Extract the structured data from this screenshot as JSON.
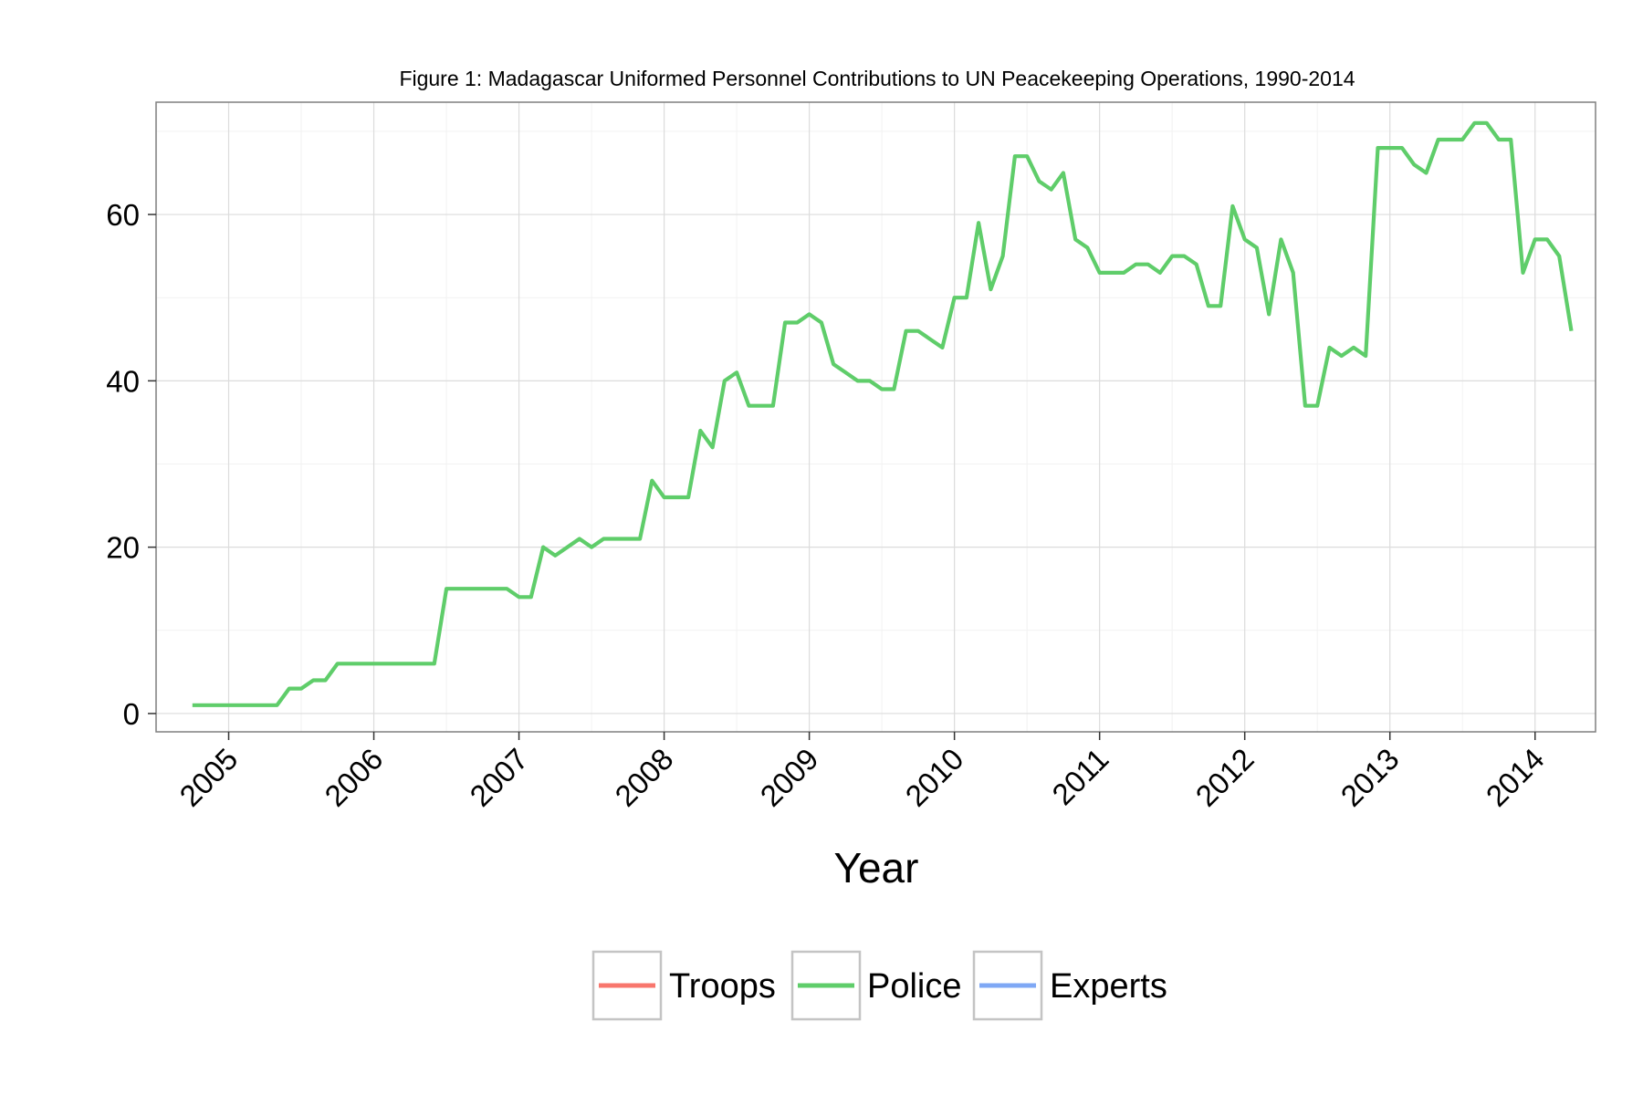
{
  "chart_data": {
    "type": "line",
    "title": "Figure 1: Madagascar Uniformed Personnel Contributions to UN Peacekeeping Operations, 1990-2014",
    "xlabel": "Year",
    "ylabel": "",
    "x_ticks": [
      "2005",
      "2006",
      "2007",
      "2008",
      "2009",
      "2010",
      "2011",
      "2012",
      "2013",
      "2014"
    ],
    "y_ticks": [
      "0",
      "20",
      "40",
      "60"
    ],
    "xlim": [
      "2004-07",
      "2014-06"
    ],
    "ylim": [
      -2.2,
      73.5
    ],
    "grid": true,
    "legend_position": "bottom",
    "legend": [
      {
        "name": "Troops",
        "color": "#F8766D"
      },
      {
        "name": "Police",
        "color": "#5FCD6A"
      },
      {
        "name": "Experts",
        "color": "#7FA8F5"
      }
    ],
    "series": [
      {
        "name": "Police",
        "color": "#5FCD6A",
        "points": [
          [
            "2004-10",
            1
          ],
          [
            "2004-11",
            1
          ],
          [
            "2004-12",
            1
          ],
          [
            "2005-01",
            1
          ],
          [
            "2005-02",
            1
          ],
          [
            "2005-03",
            1
          ],
          [
            "2005-04",
            1
          ],
          [
            "2005-05",
            1
          ],
          [
            "2005-06",
            3
          ],
          [
            "2005-07",
            3
          ],
          [
            "2005-08",
            4
          ],
          [
            "2005-09",
            4
          ],
          [
            "2005-10",
            6
          ],
          [
            "2005-11",
            6
          ],
          [
            "2005-12",
            6
          ],
          [
            "2006-01",
            6
          ],
          [
            "2006-02",
            6
          ],
          [
            "2006-03",
            6
          ],
          [
            "2006-04",
            6
          ],
          [
            "2006-05",
            6
          ],
          [
            "2006-06",
            6
          ],
          [
            "2006-07",
            15
          ],
          [
            "2006-08",
            15
          ],
          [
            "2006-09",
            15
          ],
          [
            "2006-10",
            15
          ],
          [
            "2006-11",
            15
          ],
          [
            "2006-12",
            15
          ],
          [
            "2007-01",
            14
          ],
          [
            "2007-02",
            14
          ],
          [
            "2007-03",
            20
          ],
          [
            "2007-04",
            19
          ],
          [
            "2007-05",
            20
          ],
          [
            "2007-06",
            21
          ],
          [
            "2007-07",
            20
          ],
          [
            "2007-08",
            21
          ],
          [
            "2007-09",
            21
          ],
          [
            "2007-10",
            21
          ],
          [
            "2007-11",
            21
          ],
          [
            "2007-12",
            28
          ],
          [
            "2008-01",
            26
          ],
          [
            "2008-02",
            26
          ],
          [
            "2008-03",
            26
          ],
          [
            "2008-04",
            34
          ],
          [
            "2008-05",
            32
          ],
          [
            "2008-06",
            40
          ],
          [
            "2008-07",
            41
          ],
          [
            "2008-08",
            37
          ],
          [
            "2008-09",
            37
          ],
          [
            "2008-10",
            37
          ],
          [
            "2008-11",
            47
          ],
          [
            "2008-12",
            47
          ],
          [
            "2009-01",
            48
          ],
          [
            "2009-02",
            47
          ],
          [
            "2009-03",
            42
          ],
          [
            "2009-04",
            41
          ],
          [
            "2009-05",
            40
          ],
          [
            "2009-06",
            40
          ],
          [
            "2009-07",
            39
          ],
          [
            "2009-08",
            39
          ],
          [
            "2009-09",
            46
          ],
          [
            "2009-10",
            46
          ],
          [
            "2009-11",
            45
          ],
          [
            "2009-12",
            44
          ],
          [
            "2010-01",
            50
          ],
          [
            "2010-02",
            50
          ],
          [
            "2010-03",
            59
          ],
          [
            "2010-04",
            51
          ],
          [
            "2010-05",
            55
          ],
          [
            "2010-06",
            67
          ],
          [
            "2010-07",
            67
          ],
          [
            "2010-08",
            64
          ],
          [
            "2010-09",
            63
          ],
          [
            "2010-10",
            65
          ],
          [
            "2010-11",
            57
          ],
          [
            "2010-12",
            56
          ],
          [
            "2011-01",
            53
          ],
          [
            "2011-02",
            53
          ],
          [
            "2011-03",
            53
          ],
          [
            "2011-04",
            54
          ],
          [
            "2011-05",
            54
          ],
          [
            "2011-06",
            53
          ],
          [
            "2011-07",
            55
          ],
          [
            "2011-08",
            55
          ],
          [
            "2011-09",
            54
          ],
          [
            "2011-10",
            49
          ],
          [
            "2011-11",
            49
          ],
          [
            "2011-12",
            61
          ],
          [
            "2012-01",
            57
          ],
          [
            "2012-02",
            56
          ],
          [
            "2012-03",
            48
          ],
          [
            "2012-04",
            57
          ],
          [
            "2012-05",
            53
          ],
          [
            "2012-06",
            37
          ],
          [
            "2012-07",
            37
          ],
          [
            "2012-08",
            44
          ],
          [
            "2012-09",
            43
          ],
          [
            "2012-10",
            44
          ],
          [
            "2012-11",
            43
          ],
          [
            "2012-12",
            68
          ],
          [
            "2013-01",
            68
          ],
          [
            "2013-02",
            68
          ],
          [
            "2013-03",
            66
          ],
          [
            "2013-04",
            65
          ],
          [
            "2013-05",
            69
          ],
          [
            "2013-06",
            69
          ],
          [
            "2013-07",
            69
          ],
          [
            "2013-08",
            71
          ],
          [
            "2013-09",
            71
          ],
          [
            "2013-10",
            69
          ],
          [
            "2013-11",
            69
          ],
          [
            "2013-12",
            53
          ],
          [
            "2014-01",
            57
          ],
          [
            "2014-02",
            57
          ],
          [
            "2014-03",
            55
          ],
          [
            "2014-04",
            46
          ]
        ]
      }
    ]
  }
}
